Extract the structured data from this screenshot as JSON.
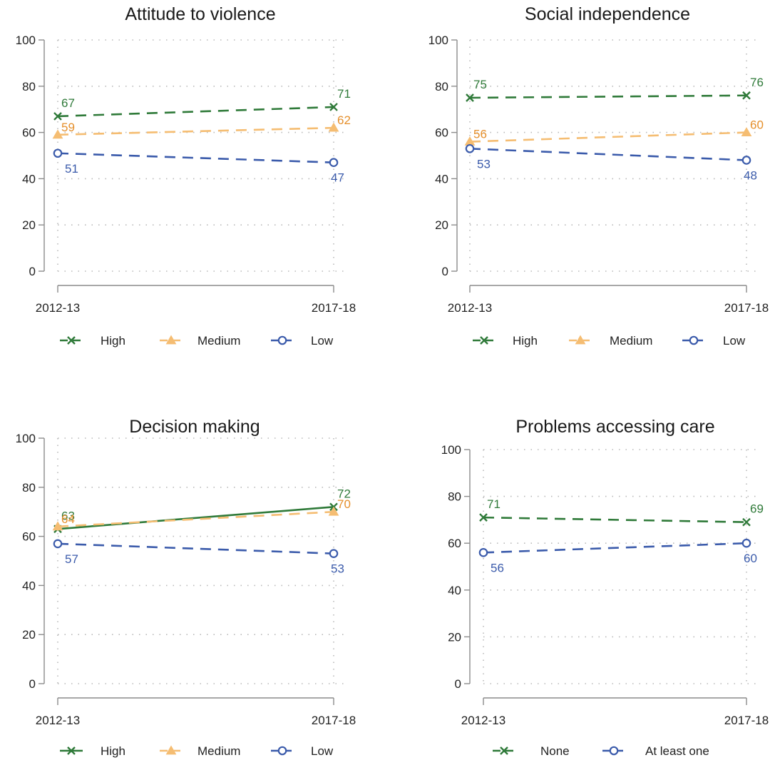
{
  "colors": {
    "high": "#2f7a39",
    "medium": "#f5bd72",
    "medium_label": "#e58f2b",
    "low": "#3b5bab",
    "axis": "#8c8c8c",
    "grid": "#b9b9b9"
  },
  "chart_data": [
    {
      "type": "line",
      "title": "Attitude to violence",
      "x": [
        "2012-13",
        "2017-18"
      ],
      "ylim": [
        0,
        100
      ],
      "yticks": [
        "0",
        "20",
        "40",
        "60",
        "80",
        "100"
      ],
      "grid": true,
      "legend_position": "bottom",
      "series": [
        {
          "name": "High",
          "color_key": "high",
          "label_color_key": "high",
          "marker": "x",
          "dash": "long",
          "values": [
            67,
            71
          ],
          "labels": [
            "67",
            "71"
          ]
        },
        {
          "name": "Medium",
          "color_key": "medium",
          "label_color_key": "medium_label",
          "marker": "triangle",
          "dash": "long",
          "values": [
            59,
            62
          ],
          "labels": [
            "59",
            "62"
          ]
        },
        {
          "name": "Low",
          "color_key": "low",
          "label_color_key": "low",
          "marker": "circle",
          "dash": "long",
          "values": [
            51,
            47
          ],
          "labels": [
            "51",
            "47"
          ]
        }
      ]
    },
    {
      "type": "line",
      "title": "Social independence",
      "x": [
        "2012-13",
        "2017-18"
      ],
      "ylim": [
        0,
        100
      ],
      "yticks": [
        "0",
        "20",
        "40",
        "60",
        "80",
        "100"
      ],
      "grid": true,
      "legend_position": "bottom",
      "series": [
        {
          "name": "High",
          "color_key": "high",
          "label_color_key": "high",
          "marker": "x",
          "dash": "long",
          "values": [
            75,
            76
          ],
          "labels": [
            "75",
            "76"
          ]
        },
        {
          "name": "Medium",
          "color_key": "medium",
          "label_color_key": "medium_label",
          "marker": "triangle",
          "dash": "long",
          "values": [
            56,
            60
          ],
          "labels": [
            "56",
            "60"
          ]
        },
        {
          "name": "Low",
          "color_key": "low",
          "label_color_key": "low",
          "marker": "circle",
          "dash": "long",
          "values": [
            53,
            48
          ],
          "labels": [
            "53",
            "48"
          ]
        }
      ]
    },
    {
      "type": "line",
      "title": "Decision making",
      "x": [
        "2012-13",
        "2017-18"
      ],
      "ylim": [
        0,
        100
      ],
      "yticks": [
        "0",
        "20",
        "40",
        "60",
        "80",
        "100"
      ],
      "grid": true,
      "legend_position": "bottom",
      "series": [
        {
          "name": "High",
          "color_key": "high",
          "label_color_key": "high",
          "marker": "x",
          "dash": "solid",
          "values": [
            63,
            72
          ],
          "labels": [
            "63",
            "72"
          ]
        },
        {
          "name": "Medium",
          "color_key": "medium",
          "label_color_key": "medium_label",
          "marker": "triangle",
          "dash": "long",
          "values": [
            64,
            70
          ],
          "labels": [
            "64",
            "70"
          ]
        },
        {
          "name": "Low",
          "color_key": "low",
          "label_color_key": "low",
          "marker": "circle",
          "dash": "long",
          "values": [
            57,
            53
          ],
          "labels": [
            "57",
            "53"
          ]
        }
      ]
    },
    {
      "type": "line",
      "title": "Problems accessing care",
      "x": [
        "2012-13",
        "2017-18"
      ],
      "ylim": [
        0,
        100
      ],
      "yticks": [
        "0",
        "20",
        "40",
        "60",
        "80",
        "100"
      ],
      "grid": true,
      "legend_position": "bottom",
      "series": [
        {
          "name": "None",
          "color_key": "high",
          "label_color_key": "high",
          "marker": "x",
          "dash": "long",
          "values": [
            71,
            69
          ],
          "labels": [
            "71",
            "69"
          ]
        },
        {
          "name": "At least one",
          "color_key": "low",
          "label_color_key": "low",
          "marker": "circle",
          "dash": "long",
          "values": [
            56,
            60
          ],
          "labels": [
            "56",
            "60"
          ]
        }
      ]
    }
  ]
}
